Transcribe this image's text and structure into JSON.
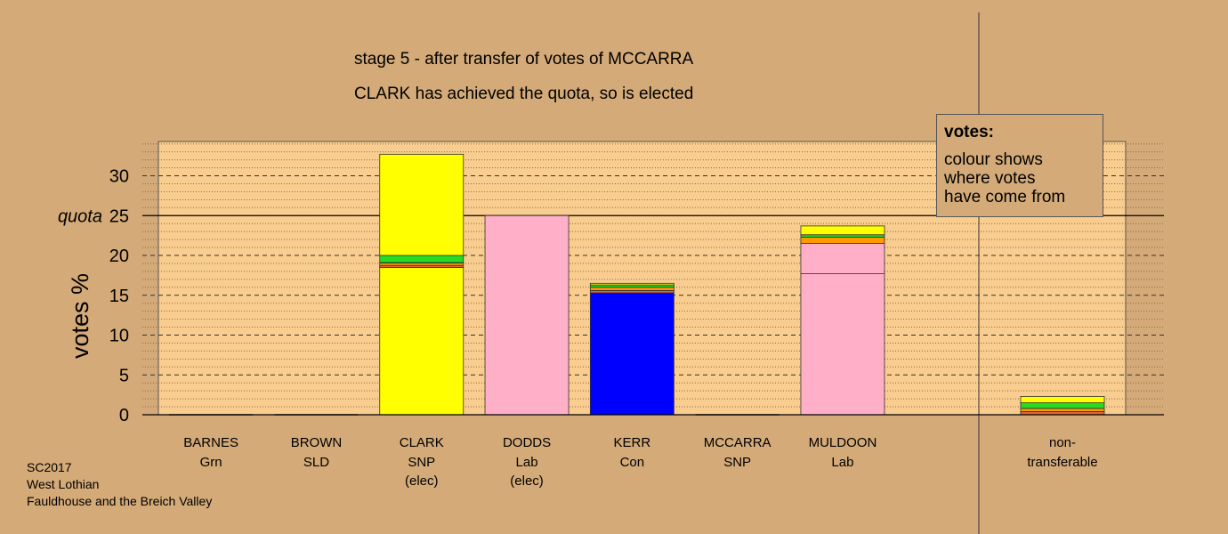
{
  "titles": {
    "line1": "stage 5 - after transfer of votes of MCCARRA",
    "line2": "CLARK has achieved the quota, so is elected"
  },
  "footer": [
    "SC2017",
    "West Lothian",
    "Fauldhouse and the Breich Valley"
  ],
  "legend": {
    "title": "votes:",
    "lines": [
      "colour shows",
      "where votes",
      "have come from"
    ]
  },
  "colors": {
    "background": "#d4aa78",
    "plot_area": "#f9cc8f",
    "snp": "#ffff00",
    "lab": "#ffb0c8",
    "con": "#0000ff",
    "grn": "#22dd22",
    "sld": "#ff9900",
    "other": "#dd6633"
  },
  "chart_data": {
    "type": "bar",
    "stacked": true,
    "ylabel": "votes %",
    "quota": 25,
    "quota_label": "quota",
    "ylim": [
      0,
      34
    ],
    "yticks": [
      0,
      5,
      10,
      15,
      20,
      25,
      30
    ],
    "categories": [
      {
        "name": "BARNES",
        "party": "Grn",
        "note": ""
      },
      {
        "name": "BROWN",
        "party": "SLD",
        "note": ""
      },
      {
        "name": "CLARK",
        "party": "SNP",
        "note": "(elec)"
      },
      {
        "name": "DODDS",
        "party": "Lab",
        "note": "(elec)"
      },
      {
        "name": "KERR",
        "party": "Con",
        "note": ""
      },
      {
        "name": "MCCARRA",
        "party": "SNP",
        "note": ""
      },
      {
        "name": "MULDOON",
        "party": "Lab",
        "note": ""
      }
    ],
    "nontransferable_label": [
      "non-",
      "transferable"
    ],
    "stacks": [
      [],
      [],
      [
        {
          "color": "snp",
          "value": 18.5
        },
        {
          "color": "other",
          "value": 0.25
        },
        {
          "color": "sld",
          "value": 0.3
        },
        {
          "color": "con",
          "value": 0.05
        },
        {
          "color": "grn",
          "value": 0.9
        },
        {
          "color": "snp",
          "value": 12.7
        }
      ],
      [
        {
          "color": "lab",
          "value": 25.0
        }
      ],
      [
        {
          "color": "con",
          "value": 15.3
        },
        {
          "color": "other",
          "value": 0.3
        },
        {
          "color": "sld",
          "value": 0.4
        },
        {
          "color": "grn",
          "value": 0.3
        },
        {
          "color": "snp",
          "value": 0.2
        }
      ],
      [],
      [
        {
          "color": "lab",
          "value": 17.7
        },
        {
          "color": "lab",
          "value": 3.8
        },
        {
          "color": "sld",
          "value": 0.8
        },
        {
          "color": "grn",
          "value": 0.3
        },
        {
          "color": "snp",
          "value": 1.1
        }
      ]
    ],
    "nontransferable_stack": [
      {
        "color": "other",
        "value": 0.4
      },
      {
        "color": "sld",
        "value": 0.4
      },
      {
        "color": "grn",
        "value": 0.7
      },
      {
        "color": "snp",
        "value": 0.8
      }
    ]
  }
}
